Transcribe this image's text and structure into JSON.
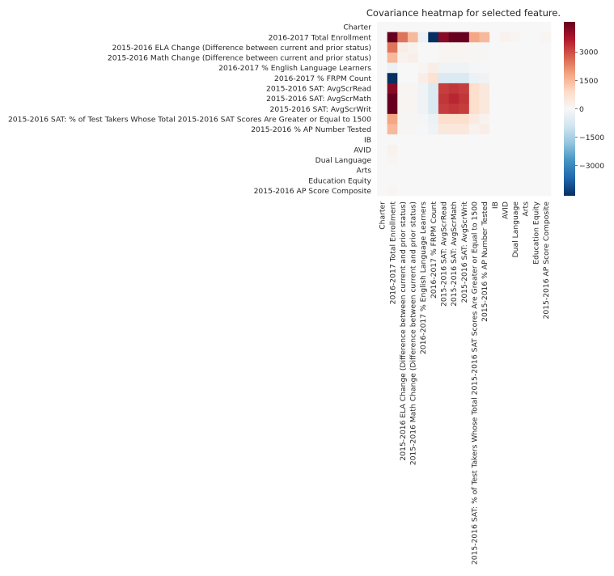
{
  "chart_data": {
    "type": "heatmap",
    "title": "Covariance heatmap for selected feature.",
    "features": [
      "Charter",
      "2016-2017 Total Enrollment",
      "2015-2016 ELA Change (Difference between current and prior status)",
      "2015-2016 Math Change (Difference between current and prior status)",
      "2016-2017 % English Language Learners",
      "2016-2017 % FRPM Count",
      "2015-2016 SAT: AvgScrRead",
      "2015-2016 SAT: AvgScrMath",
      "2015-2016 SAT: AvgScrWrit",
      "2015-2016 SAT: % of Test Takers Whose Total 2015-2016 SAT Scores Are Greater or Equal to 1500",
      "2015-2016 % AP Number Tested",
      "IB",
      "AVID",
      "Dual Language",
      "Arts",
      "Education Equity",
      "2015-2016 AP Score Composite"
    ],
    "values": [
      [
        0,
        0,
        0,
        0,
        0,
        0,
        0,
        0,
        0,
        0,
        0,
        0,
        0,
        0,
        0,
        0,
        0
      ],
      [
        0,
        4600,
        2500,
        1500,
        -300,
        -4600,
        4200,
        4600,
        4600,
        1800,
        1500,
        0,
        200,
        100,
        0,
        0,
        100
      ],
      [
        0,
        2500,
        300,
        150,
        0,
        0,
        100,
        100,
        100,
        50,
        50,
        0,
        0,
        0,
        0,
        0,
        0
      ],
      [
        0,
        1500,
        150,
        250,
        0,
        0,
        100,
        100,
        100,
        50,
        50,
        0,
        0,
        0,
        0,
        0,
        0
      ],
      [
        0,
        -300,
        0,
        0,
        100,
        300,
        -200,
        -200,
        -200,
        -100,
        -50,
        0,
        0,
        0,
        0,
        0,
        0
      ],
      [
        0,
        -4600,
        0,
        0,
        300,
        700,
        -700,
        -700,
        -700,
        -300,
        -200,
        0,
        0,
        0,
        0,
        0,
        0
      ],
      [
        0,
        4200,
        100,
        100,
        -200,
        -700,
        3200,
        3300,
        3200,
        800,
        500,
        0,
        0,
        0,
        0,
        0,
        0
      ],
      [
        0,
        4600,
        100,
        100,
        -200,
        -700,
        3300,
        3500,
        3300,
        800,
        500,
        0,
        0,
        0,
        0,
        0,
        0
      ],
      [
        0,
        4600,
        100,
        100,
        -200,
        -700,
        3200,
        3300,
        3200,
        800,
        500,
        0,
        0,
        0,
        0,
        0,
        0
      ],
      [
        0,
        1800,
        50,
        50,
        -100,
        -300,
        800,
        800,
        800,
        400,
        200,
        0,
        0,
        0,
        0,
        0,
        0
      ],
      [
        0,
        1500,
        50,
        50,
        -50,
        -200,
        500,
        500,
        500,
        200,
        300,
        0,
        0,
        0,
        0,
        0,
        0
      ],
      [
        0,
        0,
        0,
        0,
        0,
        0,
        0,
        0,
        0,
        0,
        0,
        0,
        0,
        0,
        0,
        0,
        0
      ],
      [
        0,
        200,
        0,
        0,
        0,
        0,
        0,
        0,
        0,
        0,
        0,
        0,
        0,
        0,
        0,
        0,
        0
      ],
      [
        0,
        100,
        0,
        0,
        0,
        0,
        0,
        0,
        0,
        0,
        0,
        0,
        0,
        0,
        0,
        0,
        0
      ],
      [
        0,
        0,
        0,
        0,
        0,
        0,
        0,
        0,
        0,
        0,
        0,
        0,
        0,
        0,
        0,
        0,
        0
      ],
      [
        0,
        0,
        0,
        0,
        0,
        0,
        0,
        0,
        0,
        0,
        0,
        0,
        0,
        0,
        0,
        0,
        0
      ],
      [
        0,
        100,
        0,
        0,
        0,
        0,
        0,
        0,
        0,
        0,
        0,
        0,
        0,
        0,
        0,
        0,
        0
      ]
    ],
    "colorbar": {
      "colormap": "RdBu_r",
      "vmin": -4600,
      "vmax": 4600,
      "ticks": [
        3000,
        1500,
        0,
        -1500,
        -3000
      ],
      "tick_labels": [
        "3000",
        "1500",
        "0",
        "−1500",
        "−3000"
      ]
    },
    "colors": {
      "stops": [
        "#053061",
        "#2166ac",
        "#4393c3",
        "#92c5de",
        "#d1e5f0",
        "#f7f7f7",
        "#fddbc7",
        "#f4a582",
        "#d6604d",
        "#b2182b",
        "#67001f"
      ]
    }
  }
}
